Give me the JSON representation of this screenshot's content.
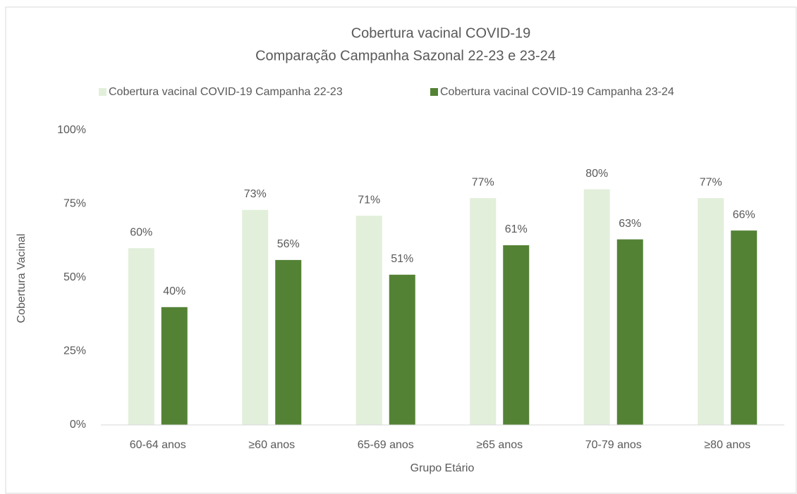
{
  "chart_data": {
    "type": "bar",
    "title": "Cobertura vacinal COVID-19",
    "subtitle": "Comparação Campanha Sazonal 22-23 e 23-24",
    "x_label": "Grupo Etário",
    "y_label": "Cobertura Vacinal",
    "categories": [
      "60-64 anos",
      "≥60 anos",
      "65-69 anos",
      "≥65 anos",
      "70-79 anos",
      "≥80 anos"
    ],
    "series": [
      {
        "name": "Cobertura vacinal COVID-19 Campanha 22-23",
        "color": "#e2efda",
        "values": [
          60,
          73,
          71,
          77,
          80,
          77
        ],
        "value_labels": [
          "60%",
          "73%",
          "71%",
          "77%",
          "80%",
          "77%"
        ]
      },
      {
        "name": "Cobertura vacinal COVID-19 Campanha 23-24",
        "color": "#548235",
        "values": [
          40,
          56,
          51,
          61,
          63,
          66
        ],
        "value_labels": [
          "40%",
          "56%",
          "51%",
          "61%",
          "63%",
          "66%"
        ]
      }
    ],
    "ylim": [
      0,
      100
    ],
    "yticks": [
      {
        "value": 0,
        "label": "0%"
      },
      {
        "value": 25,
        "label": "25%"
      },
      {
        "value": 50,
        "label": "50%"
      },
      {
        "value": 75,
        "label": "75%"
      },
      {
        "value": 100,
        "label": "100%"
      }
    ],
    "grid": false,
    "legend": "top"
  }
}
